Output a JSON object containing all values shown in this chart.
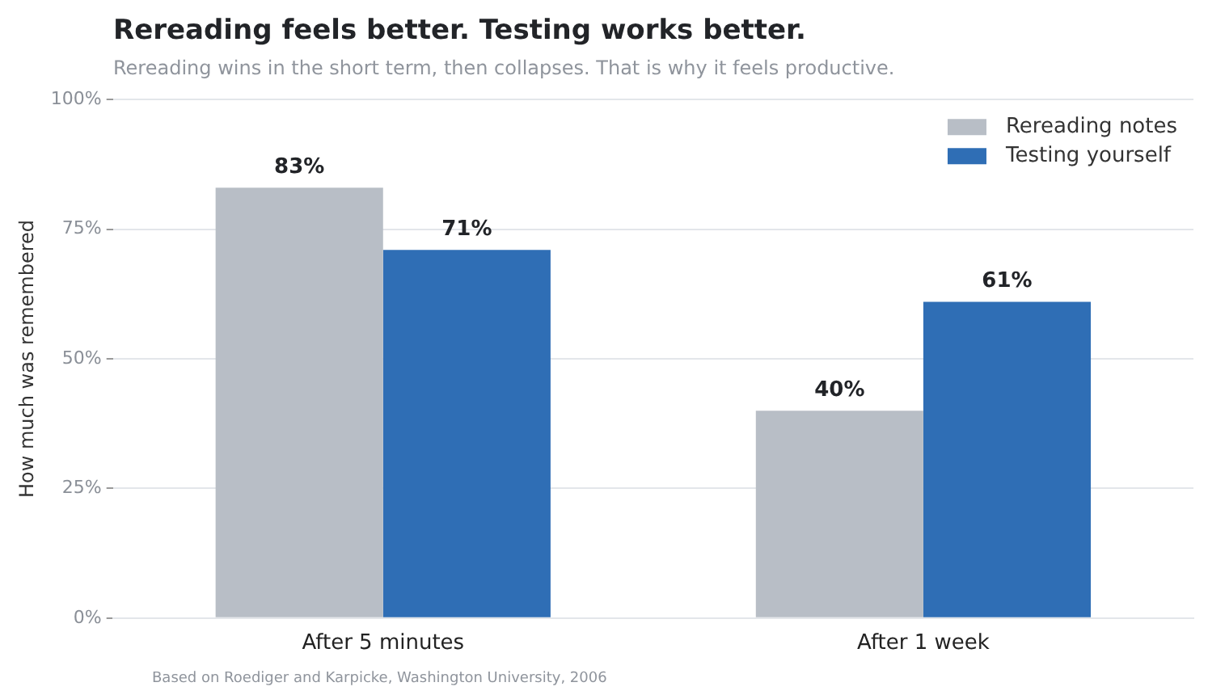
{
  "chart_data": {
    "type": "bar",
    "title": "Rereading feels better. Testing works better.",
    "subtitle": "Rereading wins in the short term, then collapses. That is why it feels productive.",
    "ylabel": "How much was remembered",
    "categories": [
      "After 5 minutes",
      "After 1 week"
    ],
    "series": [
      {
        "name": "Rereading notes",
        "color": "#b8bec6",
        "values": [
          83,
          40
        ],
        "value_labels": [
          "83%",
          "40%"
        ]
      },
      {
        "name": "Testing yourself",
        "color": "#2f6eb5",
        "values": [
          71,
          61
        ],
        "value_labels": [
          "71%",
          "61%"
        ]
      }
    ],
    "ylim": [
      0,
      100
    ],
    "yticks": [
      {
        "value": 0,
        "label": "0%"
      },
      {
        "value": 25,
        "label": "25%"
      },
      {
        "value": 50,
        "label": "50%"
      },
      {
        "value": 75,
        "label": "75%"
      },
      {
        "value": 100,
        "label": "100%"
      }
    ],
    "grid": "y",
    "legend": "top right",
    "annotations": [
      "Based on Roediger and Karpicke, Washington University, 2006"
    ]
  }
}
